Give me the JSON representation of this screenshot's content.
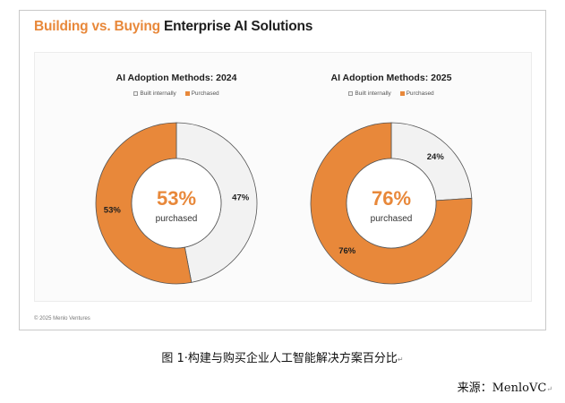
{
  "title": {
    "accent": "Building vs. Buying",
    "rest": "Enterprise AI Solutions"
  },
  "colors": {
    "purchased": "#e8883a",
    "built": "#f2f2f2",
    "outline": "#555555",
    "accent": "#e8883a"
  },
  "chart_data": [
    {
      "type": "pie",
      "title": "AI Adoption Methods: 2024",
      "legend": [
        "Built internally",
        "Purchased"
      ],
      "slices": [
        {
          "label": "Built internally",
          "value": 47,
          "text": "47%"
        },
        {
          "label": "Purchased",
          "value": 53,
          "text": "53%"
        }
      ],
      "center": {
        "value": "53%",
        "label": "purchased"
      }
    },
    {
      "type": "pie",
      "title": "AI Adoption Methods: 2025",
      "legend": [
        "Built internally",
        "Purchased"
      ],
      "slices": [
        {
          "label": "Built internally",
          "value": 24,
          "text": "24%"
        },
        {
          "label": "Purchased",
          "value": 76,
          "text": "76%"
        }
      ],
      "center": {
        "value": "76%",
        "label": "purchased"
      }
    }
  ],
  "footer": "© 2025 Menlo Ventures",
  "caption": "图 1·构建与购买企业人工智能解决方案百分比",
  "source": "来源：MenloVC",
  "return_mark": "↵"
}
